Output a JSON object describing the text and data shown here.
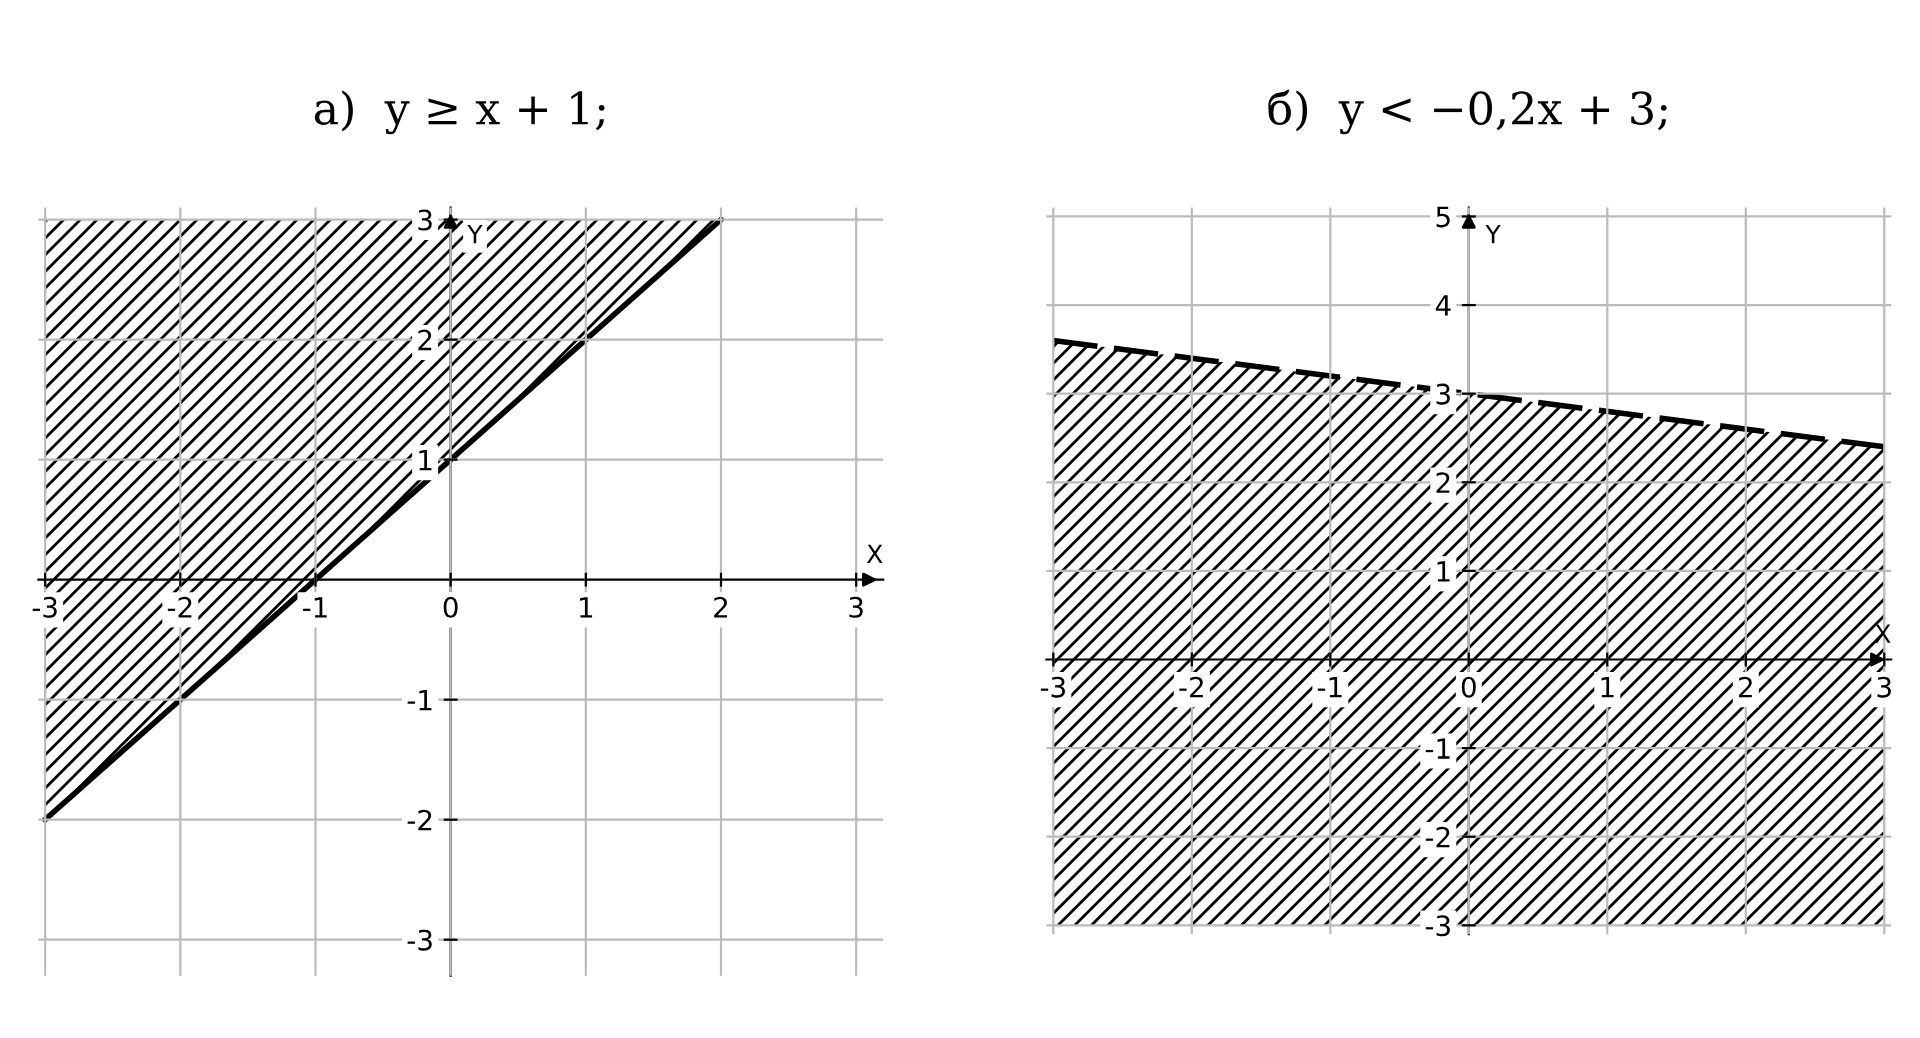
{
  "chart_data": [
    {
      "type": "line",
      "title": "а)  y ≥ x + 1;",
      "xlabel": "X",
      "ylabel": "Y",
      "xlim": [
        -3.05,
        3.2
      ],
      "ylim": [
        -3.3,
        3.1
      ],
      "xticks": [
        -3,
        -2,
        -1,
        0,
        1,
        2,
        3
      ],
      "yticks": [
        -3,
        -2,
        -1,
        1,
        2,
        3
      ],
      "grid": true,
      "line_style": "solid",
      "marker": "none",
      "series": [
        {
          "color": "#000000",
          "x": [
            -3,
            2
          ],
          "values": [
            -2,
            3
          ],
          "lower": [
            -2,
            3
          ],
          "upper": [
            3,
            3
          ]
        }
      ]
    },
    {
      "type": "line",
      "title": "б)  y < −0,2x + 3;",
      "xlabel": "X",
      "ylabel": "Y",
      "xlim": [
        -3.05,
        3.05
      ],
      "ylim": [
        -3.1,
        5.1
      ],
      "xticks": [
        -3,
        -2,
        -1,
        0,
        1,
        2,
        3
      ],
      "yticks": [
        -3,
        -2,
        -1,
        1,
        2,
        3,
        4,
        5
      ],
      "grid": true,
      "line_style": "dashed",
      "marker": "none",
      "series": [
        {
          "color": "#000000",
          "x": [
            -3,
            3
          ],
          "values": [
            3.6,
            2.4
          ],
          "lower": [
            -3,
            -3
          ],
          "upper": [
            3.6,
            2.4
          ]
        }
      ]
    }
  ]
}
